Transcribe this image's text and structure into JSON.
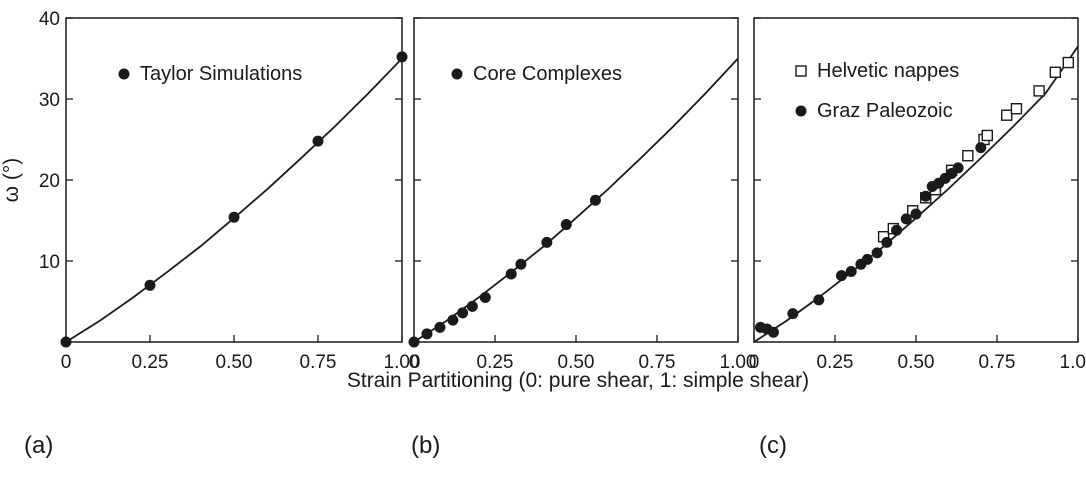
{
  "ylabel": "ω (°)",
  "xlabel": "Strain Partitioning (0: pure shear, 1: simple shear)",
  "chart_data": [
    {
      "type": "scatter",
      "panel_label": "(a)",
      "xlim": [
        0,
        1.0
      ],
      "ylim": [
        0,
        40
      ],
      "x_ticks": [
        {
          "v": 0,
          "label": "0"
        },
        {
          "v": 0.25,
          "label": "0.25"
        },
        {
          "v": 0.5,
          "label": "0.50"
        },
        {
          "v": 0.75,
          "label": "0.75"
        },
        {
          "v": 1.0,
          "label": "1.00"
        }
      ],
      "y_ticks": [
        {
          "v": 10,
          "label": "10"
        },
        {
          "v": 20,
          "label": "20"
        },
        {
          "v": 30,
          "label": "30"
        },
        {
          "v": 40,
          "label": "40"
        }
      ],
      "curve": [
        [
          0,
          0
        ],
        [
          0.1,
          2.6
        ],
        [
          0.2,
          5.5
        ],
        [
          0.3,
          8.6
        ],
        [
          0.4,
          11.8
        ],
        [
          0.5,
          15.3
        ],
        [
          0.6,
          18.9
        ],
        [
          0.7,
          22.7
        ],
        [
          0.8,
          26.6
        ],
        [
          0.9,
          30.7
        ],
        [
          1.0,
          35.0
        ]
      ],
      "series": [
        {
          "name": "Taylor Simulations",
          "marker": "filled-circle",
          "points": [
            [
              0,
              0
            ],
            [
              0.25,
              7.0
            ],
            [
              0.5,
              15.4
            ],
            [
              0.75,
              24.8
            ],
            [
              1.0,
              35.2
            ]
          ]
        }
      ]
    },
    {
      "type": "scatter",
      "panel_label": "(b)",
      "xlim": [
        0,
        1.0
      ],
      "ylim": [
        0,
        40
      ],
      "x_ticks": [
        {
          "v": 0,
          "label": "0"
        },
        {
          "v": 0.25,
          "label": "0.25"
        },
        {
          "v": 0.5,
          "label": "0.50"
        },
        {
          "v": 0.75,
          "label": "0.75"
        },
        {
          "v": 1.0,
          "label": "1.00"
        }
      ],
      "y_ticks": [
        {
          "v": 10,
          "label": ""
        },
        {
          "v": 20,
          "label": ""
        },
        {
          "v": 30,
          "label": ""
        },
        {
          "v": 40,
          "label": ""
        }
      ],
      "curve": [
        [
          0,
          0
        ],
        [
          0.1,
          2.6
        ],
        [
          0.2,
          5.5
        ],
        [
          0.3,
          8.6
        ],
        [
          0.4,
          11.8
        ],
        [
          0.5,
          15.3
        ],
        [
          0.6,
          18.9
        ],
        [
          0.7,
          22.7
        ],
        [
          0.8,
          26.6
        ],
        [
          0.9,
          30.7
        ],
        [
          1.0,
          35.0
        ]
      ],
      "series": [
        {
          "name": "Core Complexes",
          "marker": "filled-circle",
          "points": [
            [
              0,
              0
            ],
            [
              0.04,
              1.0
            ],
            [
              0.08,
              1.8
            ],
            [
              0.12,
              2.7
            ],
            [
              0.15,
              3.6
            ],
            [
              0.18,
              4.4
            ],
            [
              0.22,
              5.5
            ],
            [
              0.3,
              8.4
            ],
            [
              0.33,
              9.6
            ],
            [
              0.41,
              12.3
            ],
            [
              0.47,
              14.5
            ],
            [
              0.56,
              17.5
            ]
          ]
        }
      ]
    },
    {
      "type": "scatter",
      "panel_label": "(c)",
      "xlim": [
        0,
        1.0
      ],
      "ylim": [
        0,
        40
      ],
      "x_ticks": [
        {
          "v": 0,
          "label": "0"
        },
        {
          "v": 0.25,
          "label": "0.25"
        },
        {
          "v": 0.5,
          "label": "0.50"
        },
        {
          "v": 0.75,
          "label": "0.75"
        },
        {
          "v": 1.0,
          "label": "1.00"
        }
      ],
      "y_ticks": [
        {
          "v": 10,
          "label": ""
        },
        {
          "v": 20,
          "label": ""
        },
        {
          "v": 30,
          "label": ""
        },
        {
          "v": 40,
          "label": ""
        }
      ],
      "curve": [
        [
          0,
          0
        ],
        [
          0.1,
          2.6
        ],
        [
          0.2,
          5.5
        ],
        [
          0.3,
          8.6
        ],
        [
          0.4,
          11.8
        ],
        [
          0.5,
          15.3
        ],
        [
          0.6,
          18.9
        ],
        [
          0.7,
          22.7
        ],
        [
          0.8,
          26.6
        ],
        [
          0.9,
          30.7
        ],
        [
          1.0,
          36.5
        ]
      ],
      "series": [
        {
          "name": "Helvetic nappes",
          "marker": "open-square",
          "points": [
            [
              0.4,
              13.0
            ],
            [
              0.43,
              14.0
            ],
            [
              0.49,
              16.2
            ],
            [
              0.53,
              17.8
            ],
            [
              0.56,
              18.8
            ],
            [
              0.61,
              21.2
            ],
            [
              0.66,
              23.0
            ],
            [
              0.71,
              25.0
            ],
            [
              0.72,
              25.5
            ],
            [
              0.78,
              28.0
            ],
            [
              0.81,
              28.8
            ],
            [
              0.88,
              31.0
            ],
            [
              0.93,
              33.3
            ],
            [
              0.97,
              34.5
            ]
          ]
        },
        {
          "name": "Graz Paleozoic",
          "marker": "filled-circle",
          "points": [
            [
              0.02,
              1.8
            ],
            [
              0.04,
              1.6
            ],
            [
              0.06,
              1.2
            ],
            [
              0.12,
              3.5
            ],
            [
              0.2,
              5.2
            ],
            [
              0.27,
              8.2
            ],
            [
              0.3,
              8.7
            ],
            [
              0.33,
              9.6
            ],
            [
              0.35,
              10.2
            ],
            [
              0.38,
              11.0
            ],
            [
              0.41,
              12.3
            ],
            [
              0.44,
              13.8
            ],
            [
              0.47,
              15.2
            ],
            [
              0.5,
              15.8
            ],
            [
              0.53,
              18.0
            ],
            [
              0.55,
              19.2
            ],
            [
              0.57,
              19.6
            ],
            [
              0.59,
              20.2
            ],
            [
              0.61,
              20.8
            ],
            [
              0.63,
              21.5
            ],
            [
              0.7,
              24.0
            ]
          ]
        }
      ]
    }
  ]
}
